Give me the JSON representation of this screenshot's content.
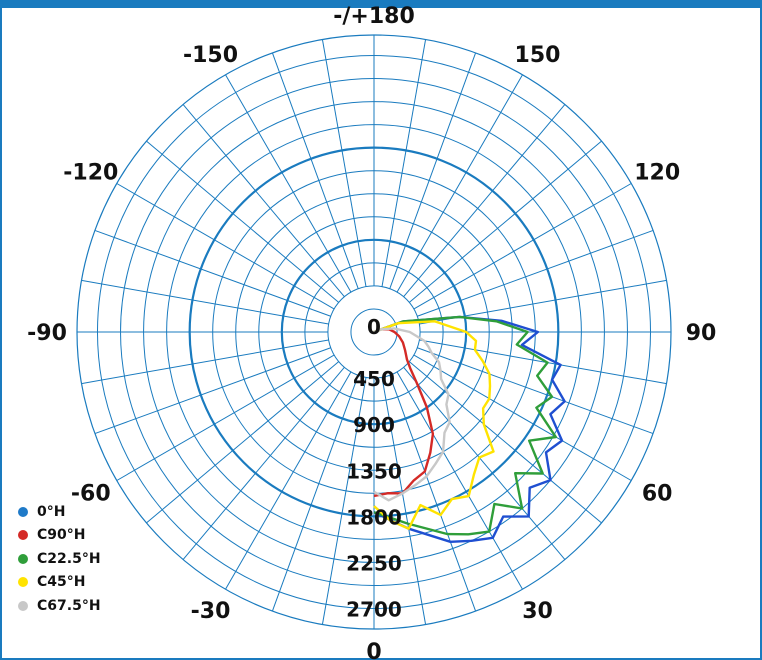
{
  "chart_data": {
    "type": "polar-line",
    "angle_labels": [
      {
        "angle": 180,
        "text": "-/+180"
      },
      {
        "angle": 150,
        "text": "150"
      },
      {
        "angle": 120,
        "text": "120"
      },
      {
        "angle": 90,
        "text": "90"
      },
      {
        "angle": 60,
        "text": "60"
      },
      {
        "angle": 30,
        "text": "30"
      },
      {
        "angle": 0,
        "text": "0"
      },
      {
        "angle": -30,
        "text": "-30"
      },
      {
        "angle": -60,
        "text": "-60"
      },
      {
        "angle": -90,
        "text": "-90"
      },
      {
        "angle": -120,
        "text": "-120"
      },
      {
        "angle": -150,
        "text": "-150"
      }
    ],
    "radial_labels": [
      "0",
      "450",
      "900",
      "1350",
      "1800",
      "2250",
      "2700"
    ],
    "radial_max": 2900,
    "angle_step": 10,
    "series": [
      {
        "name": "0°H",
        "color": "#1f4fd1",
        "points": [
          [
            0,
            1760
          ],
          [
            10,
            1950
          ],
          [
            20,
            2180
          ],
          [
            25,
            2250
          ],
          [
            30,
            2320
          ],
          [
            35,
            2200
          ],
          [
            40,
            2350
          ],
          [
            45,
            2150
          ],
          [
            50,
            2250
          ],
          [
            55,
            2050
          ],
          [
            60,
            2120
          ],
          [
            65,
            1900
          ],
          [
            70,
            1980
          ],
          [
            75,
            1800
          ],
          [
            80,
            1850
          ],
          [
            85,
            1450
          ],
          [
            90,
            1600
          ],
          [
            95,
            1250
          ],
          [
            100,
            850
          ],
          [
            110,
            300
          ],
          [
            120,
            0
          ]
        ]
      },
      {
        "name": "C90°H",
        "color": "#d42a26",
        "points": [
          [
            0,
            1600
          ],
          [
            5,
            1580
          ],
          [
            10,
            1600
          ],
          [
            15,
            1500
          ],
          [
            20,
            1450
          ],
          [
            25,
            1300
          ],
          [
            30,
            1150
          ],
          [
            35,
            900
          ],
          [
            40,
            650
          ],
          [
            45,
            500
          ],
          [
            50,
            420
          ],
          [
            55,
            380
          ],
          [
            60,
            350
          ],
          [
            70,
            300
          ],
          [
            80,
            250
          ],
          [
            90,
            200
          ],
          [
            100,
            150
          ],
          [
            110,
            80
          ],
          [
            120,
            0
          ]
        ]
      },
      {
        "name": "C22.5°H",
        "color": "#2f9e3a",
        "points": [
          [
            0,
            1760
          ],
          [
            10,
            1900
          ],
          [
            20,
            2100
          ],
          [
            25,
            2180
          ],
          [
            30,
            2250
          ],
          [
            35,
            2050
          ],
          [
            40,
            2250
          ],
          [
            45,
            1950
          ],
          [
            50,
            2150
          ],
          [
            55,
            1850
          ],
          [
            60,
            2050
          ],
          [
            65,
            1750
          ],
          [
            70,
            1850
          ],
          [
            75,
            1650
          ],
          [
            80,
            1720
          ],
          [
            85,
            1400
          ],
          [
            90,
            1500
          ],
          [
            95,
            1200
          ],
          [
            100,
            850
          ],
          [
            110,
            300
          ],
          [
            120,
            0
          ]
        ]
      },
      {
        "name": "C45°H",
        "color": "#ffe300",
        "points": [
          [
            0,
            1700
          ],
          [
            5,
            1850
          ],
          [
            10,
            1950
          ],
          [
            15,
            1750
          ],
          [
            20,
            1900
          ],
          [
            25,
            1800
          ],
          [
            30,
            1850
          ],
          [
            35,
            1700
          ],
          [
            40,
            1600
          ],
          [
            45,
            1650
          ],
          [
            50,
            1400
          ],
          [
            55,
            1300
          ],
          [
            60,
            1300
          ],
          [
            65,
            1250
          ],
          [
            70,
            1200
          ],
          [
            75,
            1100
          ],
          [
            80,
            1000
          ],
          [
            85,
            1000
          ],
          [
            90,
            900
          ],
          [
            100,
            600
          ],
          [
            110,
            250
          ],
          [
            120,
            0
          ]
        ]
      },
      {
        "name": "C67.5°H",
        "color": "#c8c8c8",
        "points": [
          [
            0,
            1560
          ],
          [
            5,
            1650
          ],
          [
            10,
            1600
          ],
          [
            15,
            1550
          ],
          [
            20,
            1500
          ],
          [
            25,
            1420
          ],
          [
            30,
            1350
          ],
          [
            35,
            1200
          ],
          [
            40,
            1150
          ],
          [
            45,
            1000
          ],
          [
            50,
            950
          ],
          [
            55,
            800
          ],
          [
            60,
            750
          ],
          [
            65,
            700
          ],
          [
            70,
            600
          ],
          [
            75,
            550
          ],
          [
            80,
            500
          ],
          [
            90,
            350
          ],
          [
            100,
            200
          ],
          [
            110,
            80
          ],
          [
            120,
            0
          ]
        ]
      }
    ]
  },
  "legend": [
    {
      "label": "0°H",
      "color": "#1f7ac8"
    },
    {
      "label": "C90°H",
      "color": "#d42a26"
    },
    {
      "label": "C22.5°H",
      "color": "#2f9e3a"
    },
    {
      "label": "C45°H",
      "color": "#ffe300"
    },
    {
      "label": "C67.5°H",
      "color": "#c8c8c8"
    }
  ]
}
